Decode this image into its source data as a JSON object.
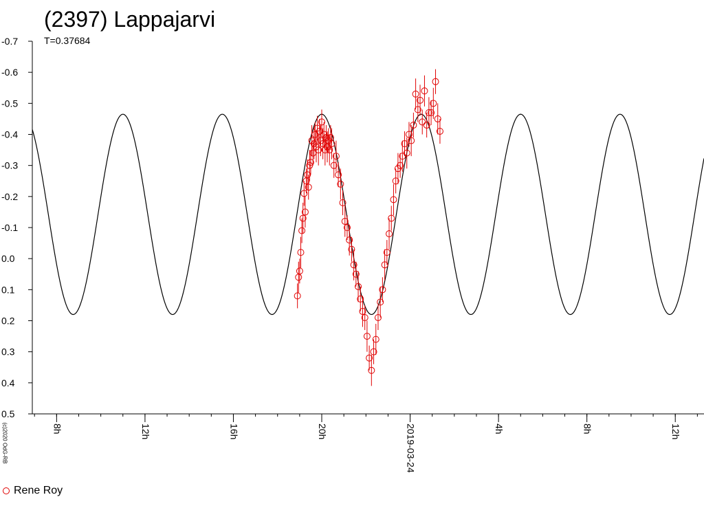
{
  "chart_data": {
    "type": "scatter",
    "title": "(2397) Lappajarvi",
    "subtitle": "T=0.37684",
    "copyright": "(c)2020 OdG-RB",
    "xlabel": "",
    "ylabel": "",
    "y_inverted": true,
    "ylim": [
      0.5,
      -0.7
    ],
    "y_ticks": [
      "-0.7",
      "-0.6",
      "-0.5",
      "-0.4",
      "-0.3",
      "-0.2",
      "-0.1",
      "0.0",
      "0.1",
      "0.2",
      "0.3",
      "0.4",
      "0.5"
    ],
    "x_unit": "hours relative to 2019-03-24 00:00",
    "xlim": [
      -17.1,
      13.3
    ],
    "x_major_ticks": [
      {
        "x": -16,
        "label": "8h"
      },
      {
        "x": -12,
        "label": "12h"
      },
      {
        "x": -8,
        "label": "16h"
      },
      {
        "x": -4,
        "label": "20h"
      },
      {
        "x": 0,
        "label": "2019-03-24"
      },
      {
        "x": 4,
        "label": "4h"
      },
      {
        "x": 8,
        "label": "8h"
      },
      {
        "x": 12,
        "label": "12h"
      }
    ],
    "model_curve": {
      "period_h": 4.5,
      "max_mag": 0.18,
      "min_mag": -0.465,
      "peak_times_h": [
        -13.5,
        -9.0,
        -4.0,
        5.0,
        9.5
      ],
      "reference_brightest_h": -4.0
    },
    "legend": [
      {
        "name": "Rene Roy",
        "color": "#e00000",
        "marker": "open-circle"
      }
    ],
    "series": [
      {
        "name": "Rene Roy",
        "color": "#e00000",
        "points": [
          [
            -5.1,
            0.12,
            0.04
          ],
          [
            -5.05,
            0.06,
            0.05
          ],
          [
            -5.0,
            0.04,
            0.04
          ],
          [
            -4.95,
            -0.02,
            0.05
          ],
          [
            -4.9,
            -0.09,
            0.04
          ],
          [
            -4.85,
            -0.13,
            0.05
          ],
          [
            -4.8,
            -0.21,
            0.04
          ],
          [
            -4.75,
            -0.15,
            0.05
          ],
          [
            -4.7,
            -0.25,
            0.04
          ],
          [
            -4.65,
            -0.27,
            0.05
          ],
          [
            -4.6,
            -0.23,
            0.04
          ],
          [
            -4.55,
            -0.3,
            0.05
          ],
          [
            -4.5,
            -0.31,
            0.04
          ],
          [
            -4.45,
            -0.38,
            0.05
          ],
          [
            -4.4,
            -0.34,
            0.04
          ],
          [
            -4.35,
            -0.37,
            0.05
          ],
          [
            -4.3,
            -0.4,
            0.04
          ],
          [
            -4.25,
            -0.36,
            0.05
          ],
          [
            -4.2,
            -0.42,
            0.04
          ],
          [
            -4.15,
            -0.35,
            0.05
          ],
          [
            -4.1,
            -0.41,
            0.04
          ],
          [
            -4.05,
            -0.38,
            0.05
          ],
          [
            -4.0,
            -0.44,
            0.04
          ],
          [
            -3.95,
            -0.37,
            0.05
          ],
          [
            -3.9,
            -0.4,
            0.04
          ],
          [
            -3.85,
            -0.35,
            0.05
          ],
          [
            -3.8,
            -0.39,
            0.04
          ],
          [
            -3.75,
            -0.36,
            0.05
          ],
          [
            -3.7,
            -0.38,
            0.04
          ],
          [
            -3.65,
            -0.35,
            0.05
          ],
          [
            -3.6,
            -0.39,
            0.04
          ],
          [
            -3.55,
            -0.37,
            0.05
          ],
          [
            -3.45,
            -0.3,
            0.04
          ],
          [
            -3.35,
            -0.33,
            0.05
          ],
          [
            -3.25,
            -0.27,
            0.04
          ],
          [
            -3.15,
            -0.24,
            0.05
          ],
          [
            -3.05,
            -0.18,
            0.04
          ],
          [
            -2.95,
            -0.12,
            0.05
          ],
          [
            -2.85,
            -0.1,
            0.04
          ],
          [
            -2.75,
            -0.06,
            0.05
          ],
          [
            -2.65,
            -0.03,
            0.04
          ],
          [
            -2.55,
            0.02,
            0.05
          ],
          [
            -2.45,
            0.05,
            0.04
          ],
          [
            -2.35,
            0.09,
            0.05
          ],
          [
            -2.25,
            0.13,
            0.04
          ],
          [
            -2.15,
            0.17,
            0.05
          ],
          [
            -2.05,
            0.19,
            0.04
          ],
          [
            -1.95,
            0.25,
            0.05
          ],
          [
            -1.85,
            0.32,
            0.04
          ],
          [
            -1.75,
            0.36,
            0.05
          ],
          [
            -1.65,
            0.3,
            0.04
          ],
          [
            -1.55,
            0.26,
            0.05
          ],
          [
            -1.45,
            0.19,
            0.04
          ],
          [
            -1.35,
            0.14,
            0.05
          ],
          [
            -1.25,
            0.1,
            0.04
          ],
          [
            -1.15,
            0.02,
            0.05
          ],
          [
            -1.05,
            -0.02,
            0.04
          ],
          [
            -0.95,
            -0.08,
            0.05
          ],
          [
            -0.85,
            -0.13,
            0.04
          ],
          [
            -0.75,
            -0.19,
            0.05
          ],
          [
            -0.65,
            -0.25,
            0.04
          ],
          [
            -0.55,
            -0.29,
            0.05
          ],
          [
            -0.45,
            -0.3,
            0.04
          ],
          [
            -0.35,
            -0.33,
            0.05
          ],
          [
            -0.25,
            -0.37,
            0.04
          ],
          [
            -0.15,
            -0.34,
            0.05
          ],
          [
            -0.05,
            -0.4,
            0.04
          ],
          [
            0.05,
            -0.38,
            0.05
          ],
          [
            0.15,
            -0.43,
            0.04
          ],
          [
            0.25,
            -0.53,
            0.05
          ],
          [
            0.35,
            -0.48,
            0.04
          ],
          [
            0.45,
            -0.51,
            0.05
          ],
          [
            0.55,
            -0.44,
            0.04
          ],
          [
            0.65,
            -0.54,
            0.05
          ],
          [
            0.75,
            -0.43,
            0.04
          ],
          [
            0.85,
            -0.47,
            0.05
          ],
          [
            0.95,
            -0.47,
            0.04
          ],
          [
            1.05,
            -0.5,
            0.05
          ],
          [
            1.15,
            -0.57,
            0.04
          ],
          [
            1.25,
            -0.45,
            0.05
          ],
          [
            1.35,
            -0.41,
            0.04
          ]
        ]
      }
    ]
  }
}
